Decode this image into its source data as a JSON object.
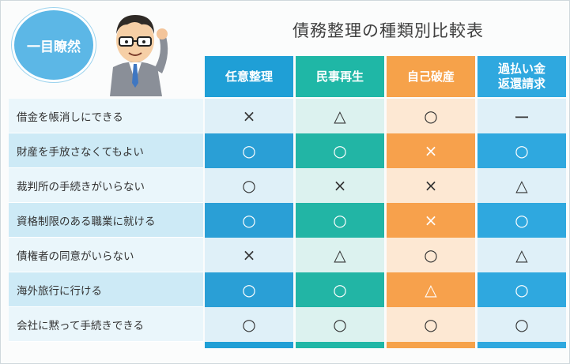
{
  "badge": "一目瞭然",
  "title": "債務整理の種類別比較表",
  "columns": [
    {
      "label": "任意整理",
      "color": "#1f9fd6"
    },
    {
      "label": "民事再生",
      "color": "#1fb7a6"
    },
    {
      "label": "自己破産",
      "color": "#f6a24a"
    },
    {
      "label": "過払い金\n返還請求",
      "color": "#2fa8df"
    }
  ],
  "rows": [
    {
      "label": "借金を帳消しにできる",
      "values": [
        "×",
        "△",
        "○",
        "ー"
      ]
    },
    {
      "label": "財産を手放さなくてもよい",
      "values": [
        "○",
        "○",
        "×",
        "○"
      ]
    },
    {
      "label": "裁判所の手続きがいらない",
      "values": [
        "○",
        "×",
        "×",
        "△"
      ]
    },
    {
      "label": "資格制限のある職業に就ける",
      "values": [
        "○",
        "○",
        "×",
        "○"
      ]
    },
    {
      "label": "債権者の同意がいらない",
      "values": [
        "×",
        "△",
        "○",
        "△"
      ]
    },
    {
      "label": "海外旅行に行ける",
      "values": [
        "○",
        "○",
        "△",
        "○"
      ]
    },
    {
      "label": "会社に黙って手続きできる",
      "values": [
        "○",
        "○",
        "○",
        "○"
      ]
    }
  ],
  "colors": {
    "label_light": "#eaf6fb",
    "label_dark": "#cdeaf6",
    "col_light": [
      "#dff0f8",
      "#dcf2ef",
      "#fde8d3",
      "#dff0f8"
    ],
    "col_dark": [
      "#2a9fd6",
      "#22b5a5",
      "#f7a14c",
      "#2fa8df"
    ]
  }
}
